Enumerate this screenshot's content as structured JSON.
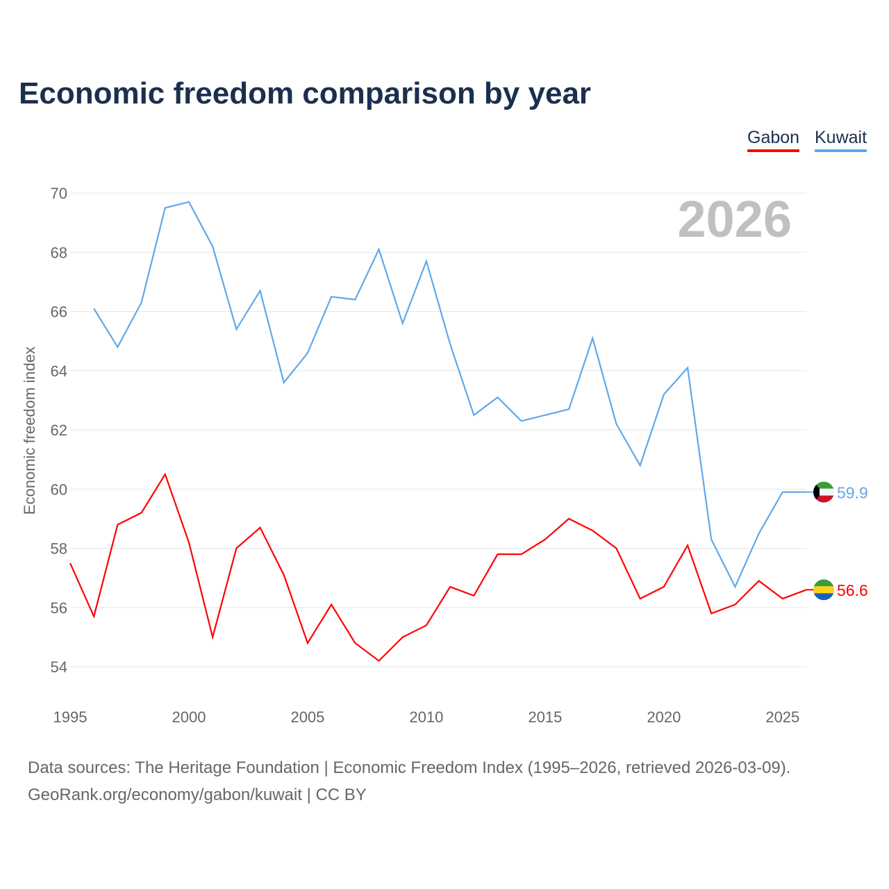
{
  "title": "Economic freedom comparison by year",
  "chart_data": {
    "type": "line",
    "title": "Economic freedom comparison by year",
    "xlabel": "",
    "ylabel": "Economic freedom index",
    "xlim": [
      1995,
      2026
    ],
    "ylim": [
      54,
      70
    ],
    "yticks": [
      54,
      56,
      58,
      60,
      62,
      64,
      66,
      68,
      70
    ],
    "xticks": [
      1995,
      2000,
      2005,
      2010,
      2015,
      2020,
      2025
    ],
    "grid": true,
    "year_watermark": "2026",
    "legend_position": "top-right",
    "series": [
      {
        "name": "Gabon",
        "color": "#ff0000",
        "end_label": "56.6",
        "x": [
          1995,
          1996,
          1997,
          1998,
          1999,
          2000,
          2001,
          2002,
          2003,
          2004,
          2005,
          2006,
          2007,
          2008,
          2009,
          2010,
          2011,
          2012,
          2013,
          2014,
          2015,
          2016,
          2017,
          2018,
          2019,
          2020,
          2021,
          2022,
          2023,
          2024,
          2025,
          2026
        ],
        "values": [
          57.5,
          55.7,
          58.8,
          59.2,
          60.5,
          58.2,
          55.0,
          58.0,
          58.7,
          57.1,
          54.8,
          56.1,
          54.8,
          54.2,
          55.0,
          55.4,
          56.7,
          56.4,
          57.8,
          57.8,
          58.3,
          59.0,
          58.6,
          58.0,
          56.3,
          56.7,
          58.1,
          55.8,
          56.1,
          56.9,
          56.3,
          56.6
        ]
      },
      {
        "name": "Kuwait",
        "color": "#5fa8ea",
        "end_label": "59.9",
        "x": [
          1996,
          1997,
          1998,
          1999,
          2000,
          2001,
          2002,
          2003,
          2004,
          2005,
          2006,
          2007,
          2008,
          2009,
          2010,
          2011,
          2012,
          2013,
          2014,
          2015,
          2016,
          2017,
          2018,
          2019,
          2020,
          2021,
          2022,
          2023,
          2024,
          2025,
          2026
        ],
        "values": [
          66.1,
          64.8,
          66.3,
          69.5,
          69.7,
          68.2,
          65.4,
          66.7,
          63.6,
          64.6,
          66.5,
          66.4,
          68.1,
          65.6,
          67.7,
          64.9,
          62.5,
          63.1,
          62.3,
          62.5,
          62.7,
          65.1,
          62.2,
          60.8,
          63.2,
          64.1,
          58.3,
          56.7,
          58.5,
          59.9,
          59.9
        ]
      }
    ]
  },
  "footer": {
    "line1": "Data sources: The Heritage Foundation | Economic Freedom Index (1995–2026, retrieved 2026-03-09).",
    "line2": "GeoRank.org/economy/gabon/kuwait | CC BY"
  }
}
